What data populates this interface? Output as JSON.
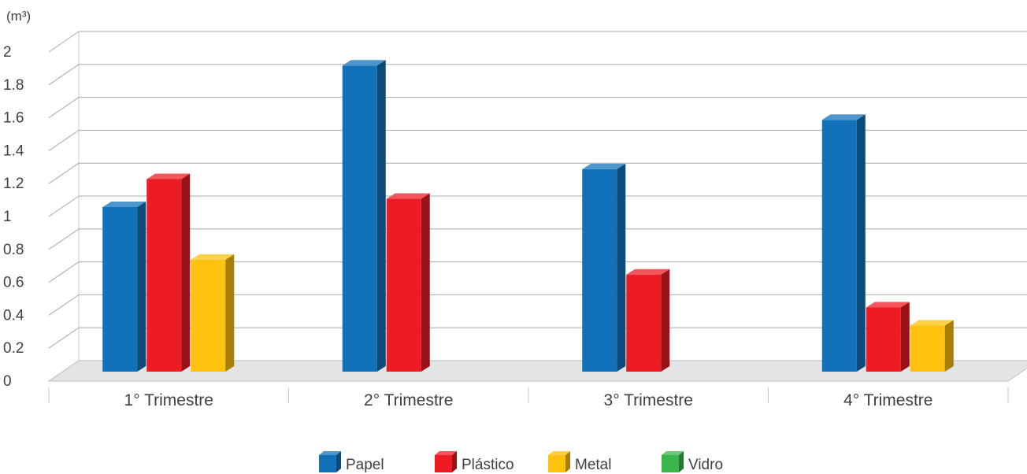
{
  "chart_data": {
    "type": "bar",
    "unit_label": "(m³)",
    "categories": [
      "1° Trimestre",
      "2° Trimestre",
      "3° Trimestre",
      "4° Trimestre"
    ],
    "series": [
      {
        "name": "Papel",
        "color": "#1172BA",
        "values": [
          1.0,
          1.86,
          1.23,
          1.53
        ]
      },
      {
        "name": "Plástico",
        "color": "#ED1C24",
        "values": [
          1.17,
          1.05,
          0.59,
          0.39
        ]
      },
      {
        "name": "Metal",
        "color": "#FFC20E",
        "values": [
          0.68,
          0,
          0,
          0.28
        ]
      },
      {
        "name": "Vidro",
        "color": "#39B54A",
        "values": [
          0,
          0,
          0,
          0
        ]
      }
    ],
    "ylim": [
      0,
      2
    ],
    "yticks": [
      "0",
      "0.2",
      "0.4",
      "0.6",
      "0.8",
      "1",
      "1.2",
      "1.4",
      "1.6",
      "1.8",
      "2"
    ],
    "grid": true,
    "legend_position": "bottom"
  }
}
